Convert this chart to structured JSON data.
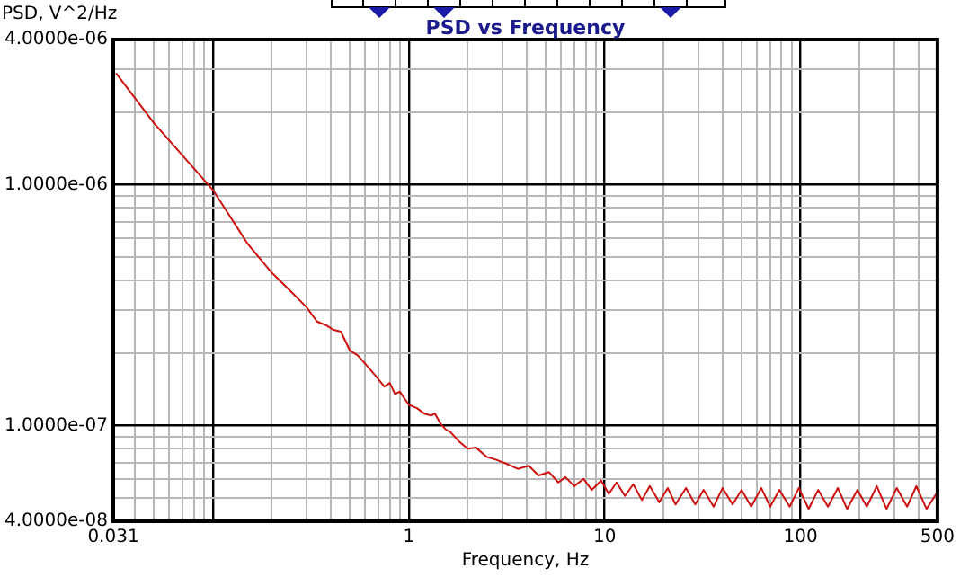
{
  "chart_data": {
    "type": "line",
    "title": "PSD vs Frequency",
    "xlabel": "Frequency, Hz",
    "ylabel": "PSD, V^2/Hz",
    "log": "xy",
    "grid": true,
    "marker": "none",
    "line_style": "solid",
    "xlim": [
      0.031,
      500
    ],
    "ylim": [
      4e-08,
      4e-06
    ],
    "xticks": [
      0.031,
      {
        "value": 0.04,
        "label": null
      },
      {
        "value": 0.05,
        "label": null
      },
      {
        "value": 0.06,
        "label": null
      },
      {
        "value": 0.07,
        "label": null
      },
      {
        "value": 0.08,
        "label": null
      },
      {
        "value": 0.09,
        "label": null
      },
      {
        "value": 0.1,
        "label": null
      },
      {
        "value": 0.2,
        "label": null
      },
      {
        "value": 0.3,
        "label": null
      },
      {
        "value": 0.4,
        "label": null
      },
      {
        "value": 0.5,
        "label": null
      },
      {
        "value": 0.6,
        "label": null
      },
      {
        "value": 0.7,
        "label": null
      },
      {
        "value": 0.8,
        "label": null
      },
      {
        "value": 0.9,
        "label": null
      },
      1,
      {
        "value": 2,
        "label": null
      },
      {
        "value": 3,
        "label": null
      },
      {
        "value": 4,
        "label": null
      },
      {
        "value": 5,
        "label": null
      },
      {
        "value": 6,
        "label": null
      },
      {
        "value": 7,
        "label": null
      },
      {
        "value": 8,
        "label": null
      },
      {
        "value": 9,
        "label": null
      },
      10,
      {
        "value": 20,
        "label": null
      },
      {
        "value": 30,
        "label": null
      },
      {
        "value": 40,
        "label": null
      },
      {
        "value": 50,
        "label": null
      },
      {
        "value": 60,
        "label": null
      },
      {
        "value": 70,
        "label": null
      },
      {
        "value": 80,
        "label": null
      },
      {
        "value": 90,
        "label": null
      },
      100,
      {
        "value": 200,
        "label": null
      },
      {
        "value": 300,
        "label": null
      },
      {
        "value": 400,
        "label": null
      },
      500
    ],
    "yticks": [
      {
        "value": 4e-08,
        "label": "4.0000e-08"
      },
      {
        "value": 5e-08,
        "label": null
      },
      {
        "value": 6e-08,
        "label": null
      },
      {
        "value": 7e-08,
        "label": null
      },
      {
        "value": 8e-08,
        "label": null
      },
      {
        "value": 9e-08,
        "label": null
      },
      {
        "value": 1e-07,
        "label": "1.0000e-07"
      },
      {
        "value": 2e-07,
        "label": null
      },
      {
        "value": 3e-07,
        "label": null
      },
      {
        "value": 4e-07,
        "label": null
      },
      {
        "value": 5e-07,
        "label": null
      },
      {
        "value": 6e-07,
        "label": null
      },
      {
        "value": 7e-07,
        "label": null
      },
      {
        "value": 8e-07,
        "label": null
      },
      {
        "value": 9e-07,
        "label": null
      },
      {
        "value": 1e-06,
        "label": "1.0000e-06"
      },
      {
        "value": 2e-06,
        "label": null
      },
      {
        "value": 3e-06,
        "label": null
      },
      {
        "value": 4e-06,
        "label": "4.0000e-06"
      }
    ],
    "series": [
      {
        "color": "#cc1010",
        "x": [
          0.032,
          0.05,
          0.1,
          0.15,
          0.2,
          0.25,
          0.3,
          0.34,
          0.38,
          0.41,
          0.45,
          0.5,
          0.55,
          0.6,
          0.68,
          0.75,
          0.8,
          0.85,
          0.9,
          1.0,
          1.1,
          1.2,
          1.3,
          1.36,
          1.45,
          1.55,
          1.63,
          1.8,
          2.0,
          2.2,
          2.5,
          2.8,
          3.2,
          3.6,
          4.1,
          4.6,
          5.2,
          5.8,
          6.3,
          7,
          7.8,
          8.6,
          9.6,
          10.5,
          11.5,
          12.7,
          14,
          15.5,
          17,
          19,
          21,
          23,
          26,
          29,
          32,
          36,
          40,
          45,
          50,
          56,
          63,
          70,
          78,
          88,
          98,
          110,
          123,
          138,
          155,
          173,
          195,
          218,
          245,
          275,
          310,
          350,
          390,
          440,
          500
        ],
        "values": [
          2.9e-06,
          1.8e-06,
          9.5e-07,
          5.7e-07,
          4.3e-07,
          3.6e-07,
          3.1e-07,
          2.7e-07,
          2.6e-07,
          2.5e-07,
          2.45e-07,
          2.05e-07,
          1.95e-07,
          1.8e-07,
          1.6e-07,
          1.45e-07,
          1.5e-07,
          1.35e-07,
          1.38e-07,
          1.22e-07,
          1.18e-07,
          1.12e-07,
          1.1e-07,
          1.12e-07,
          1.02e-07,
          9.6e-08,
          9.4e-08,
          8.6e-08,
          8e-08,
          8.1e-08,
          7.4e-08,
          7.2e-08,
          6.9e-08,
          6.6e-08,
          6.8e-08,
          6.2e-08,
          6.4e-08,
          5.8e-08,
          6.1e-08,
          5.6e-08,
          6e-08,
          5.4e-08,
          5.9e-08,
          5.2e-08,
          5.8e-08,
          5.1e-08,
          5.7e-08,
          4.9e-08,
          5.6e-08,
          4.8e-08,
          5.5e-08,
          4.7e-08,
          5.5e-08,
          4.7e-08,
          5.4e-08,
          4.6e-08,
          5.5e-08,
          4.7e-08,
          5.4e-08,
          4.6e-08,
          5.5e-08,
          4.6e-08,
          5.4e-08,
          4.6e-08,
          5.5e-08,
          4.5e-08,
          5.4e-08,
          4.6e-08,
          5.5e-08,
          4.5e-08,
          5.4e-08,
          4.6e-08,
          5.6e-08,
          4.5e-08,
          5.5e-08,
          4.6e-08,
          5.6e-08,
          4.5e-08,
          5.3e-08
        ]
      }
    ]
  }
}
